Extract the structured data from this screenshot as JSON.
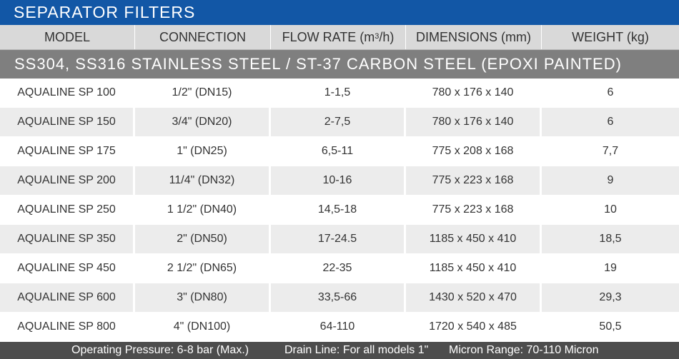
{
  "title": "SEPARATOR FILTERS",
  "columns": {
    "model": "MODEL",
    "connection": "CONNECTION",
    "flow_rate_prefix": "FLOW RATE  (m",
    "flow_rate_sup": "3",
    "flow_rate_suffix": "/h)",
    "dimensions": "DIMENSIONS (mm)",
    "weight": "WEIGHT (kg)"
  },
  "section": "SS304, SS316 STAINLESS STEEL / ST-37 CARBON STEEL (EPOXI PAINTED)",
  "rows": [
    {
      "model": "AQUALINE SP 100",
      "connection": "1/2\" (DN15)",
      "flow": "1-1,5",
      "dimensions": "780 x 176 x 140",
      "weight": "6"
    },
    {
      "model": "AQUALINE SP 150",
      "connection": "3/4\" (DN20)",
      "flow": "2-7,5",
      "dimensions": "780 x 176 x 140",
      "weight": "6"
    },
    {
      "model": "AQUALINE SP 175",
      "connection": "1\" (DN25)",
      "flow": "6,5-11",
      "dimensions": "775 x 208 x 168",
      "weight": "7,7"
    },
    {
      "model": "AQUALINE SP 200",
      "connection": "11/4\" (DN32)",
      "flow": "10-16",
      "dimensions": "775 x 223 x 168",
      "weight": "9"
    },
    {
      "model": "AQUALINE SP 250",
      "connection": "1 1/2\" (DN40)",
      "flow": "14,5-18",
      "dimensions": "775 x 223 x 168",
      "weight": "10"
    },
    {
      "model": "AQUALINE SP 350",
      "connection": "2\" (DN50)",
      "flow": "17-24.5",
      "dimensions": "1185 x 450 x 410",
      "weight": "18,5"
    },
    {
      "model": "AQUALINE SP 450",
      "connection": "2  1/2\" (DN65)",
      "flow": "22-35",
      "dimensions": "1185 x 450 x 410",
      "weight": "19"
    },
    {
      "model": "AQUALINE SP 600",
      "connection": "3\" (DN80)",
      "flow": "33,5-66",
      "dimensions": "1430 x 520 x 470",
      "weight": "29,3"
    },
    {
      "model": "AQUALINE SP 800",
      "connection": "4\" (DN100)",
      "flow": "64-110",
      "dimensions": "1720 x 540 x 485",
      "weight": "50,5"
    }
  ],
  "footer": {
    "pressure": "Operating Pressure: 6-8 bar (Max.)",
    "drain": "Drain Line: For all models 1\"",
    "micron": "Micron Range: 70-110 Micron"
  },
  "colors": {
    "title_bg": "#1257a6",
    "header_bg": "#d9d9d9",
    "section_bg": "#7f7f7f",
    "row_alt_bg": "#ececec",
    "footer_bg": "#4d4d4d"
  }
}
